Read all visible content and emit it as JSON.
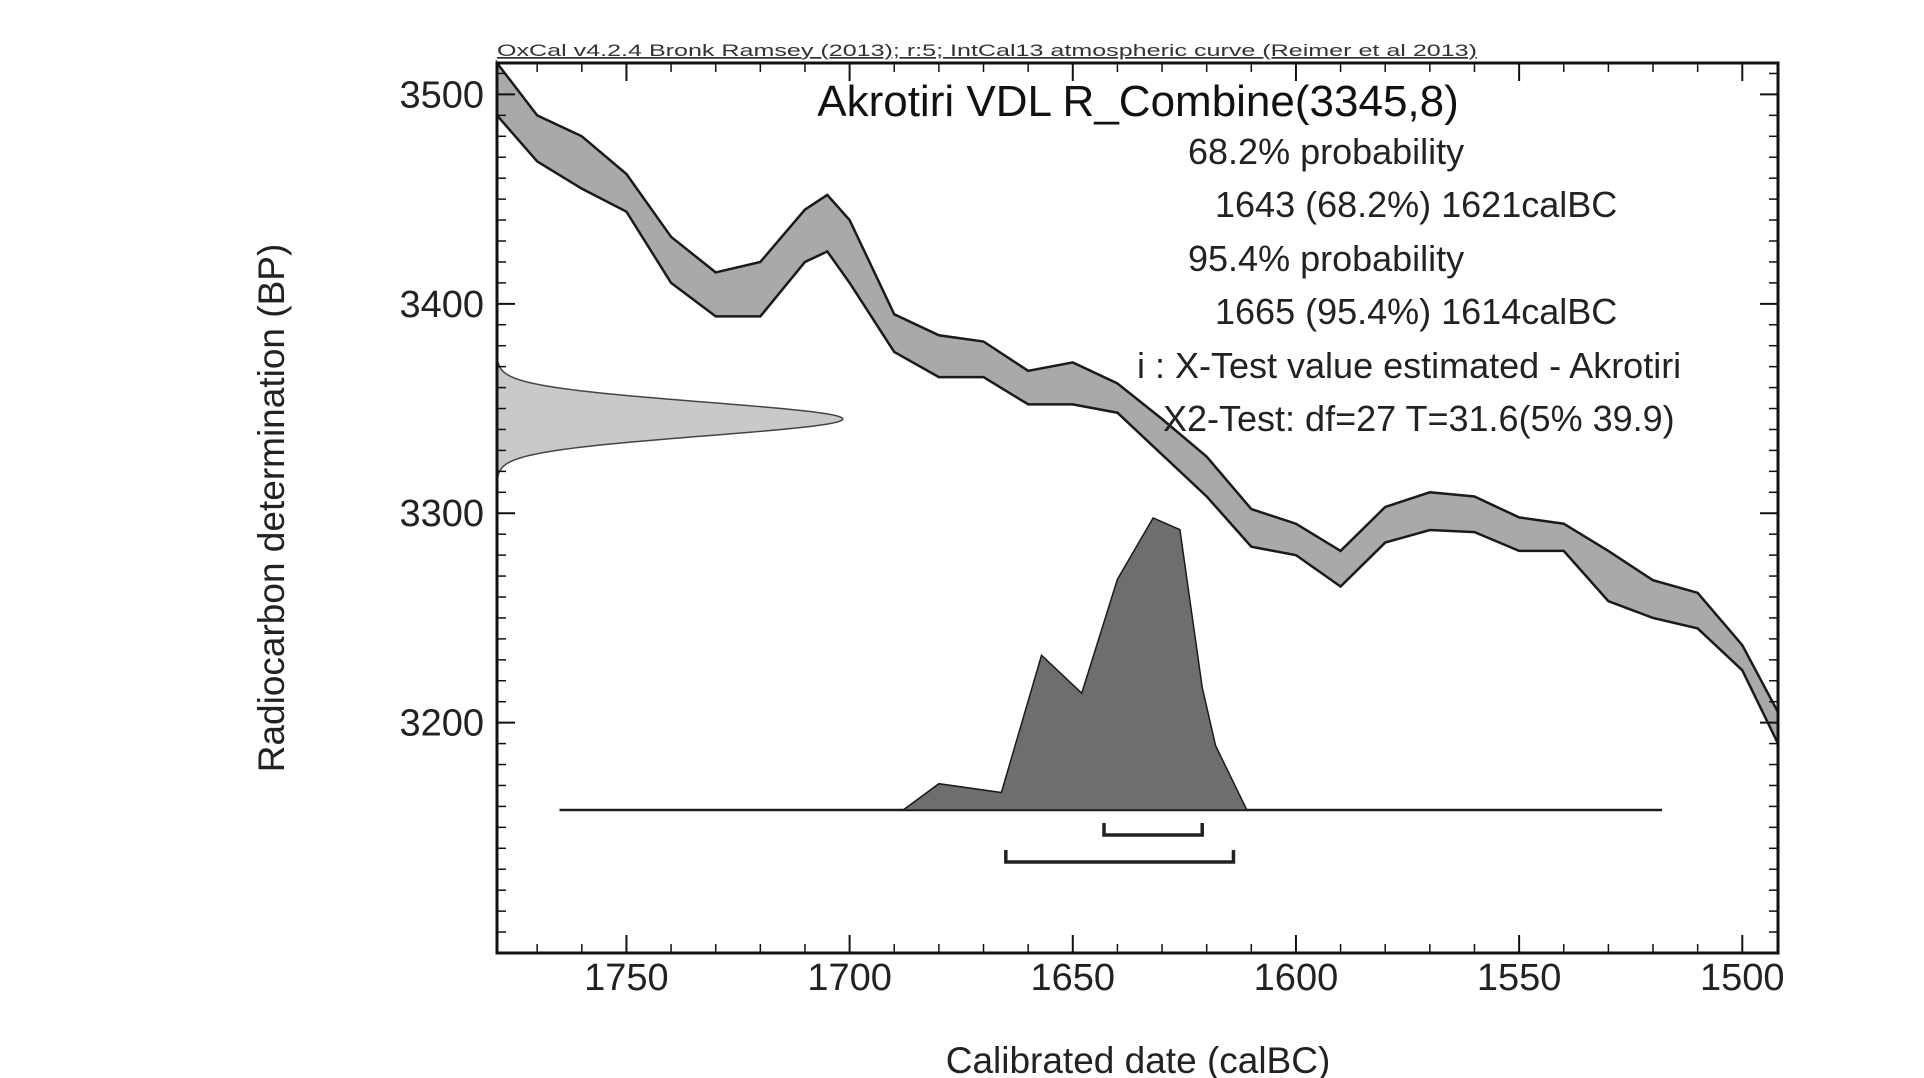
{
  "header": {
    "source_line": "OxCal v4.2.4 Bronk Ramsey (2013); r:5; IntCal13 atmospheric curve (Reimer et al 2013)"
  },
  "chart_data": {
    "type": "area",
    "title": "Akrotiri VDL R_Combine(3345,8)",
    "xlabel": "Calibrated date (calBC)",
    "ylabel": "Radiocarbon determination (BP)",
    "xlim": [
      1779,
      1492
    ],
    "ylim": [
      3090,
      3515
    ],
    "x_ticks": [
      1750,
      1700,
      1650,
      1600,
      1550,
      1500
    ],
    "y_ticks": [
      3500,
      3400,
      3300,
      3200
    ],
    "annotations": [
      "68.2% probability",
      "1643 (68.2%) 1621calBC",
      "95.4% probability",
      "1665 (95.4%) 1614calBC",
      "i : X-Test value estimated - Akrotiri",
      "X2-Test: df=27 T=31.6(5% 39.9)"
    ],
    "calibration_curve": {
      "name": "IntCal13",
      "x": [
        1779,
        1770,
        1760,
        1750,
        1740,
        1730,
        1720,
        1710,
        1705,
        1700,
        1690,
        1680,
        1670,
        1660,
        1650,
        1640,
        1630,
        1620,
        1610,
        1600,
        1590,
        1580,
        1570,
        1560,
        1550,
        1540,
        1530,
        1520,
        1510,
        1500,
        1492
      ],
      "upper": [
        3515,
        3490,
        3480,
        3462,
        3432,
        3415,
        3420,
        3445,
        3452,
        3440,
        3395,
        3385,
        3382,
        3368,
        3372,
        3362,
        3345,
        3327,
        3302,
        3295,
        3282,
        3303,
        3310,
        3308,
        3298,
        3295,
        3282,
        3268,
        3262,
        3237,
        3205
      ],
      "lower": [
        3490,
        3468,
        3455,
        3444,
        3410,
        3394,
        3394,
        3420,
        3425,
        3410,
        3377,
        3365,
        3365,
        3352,
        3352,
        3348,
        3328,
        3308,
        3284,
        3280,
        3265,
        3286,
        3292,
        3291,
        3282,
        3282,
        3258,
        3250,
        3245,
        3225,
        3190
      ]
    },
    "measurement_distribution": {
      "name": "R_Combine(3345,8)",
      "mean_bp": 3345,
      "sigma_bp": 8
    },
    "posterior_distribution": {
      "x": [
        1765,
        1688,
        1680,
        1666,
        1657,
        1648,
        1640,
        1632,
        1626,
        1621,
        1618,
        1611,
        1518
      ],
      "density": [
        0,
        0,
        0.09,
        0.06,
        0.53,
        0.4,
        0.79,
        1.0,
        0.96,
        0.42,
        0.22,
        0,
        0
      ]
    },
    "ranges": [
      {
        "label": "68.2%",
        "from": 1643,
        "to": 1621
      },
      {
        "label": "95.4%",
        "from": 1665,
        "to": 1614
      }
    ]
  }
}
